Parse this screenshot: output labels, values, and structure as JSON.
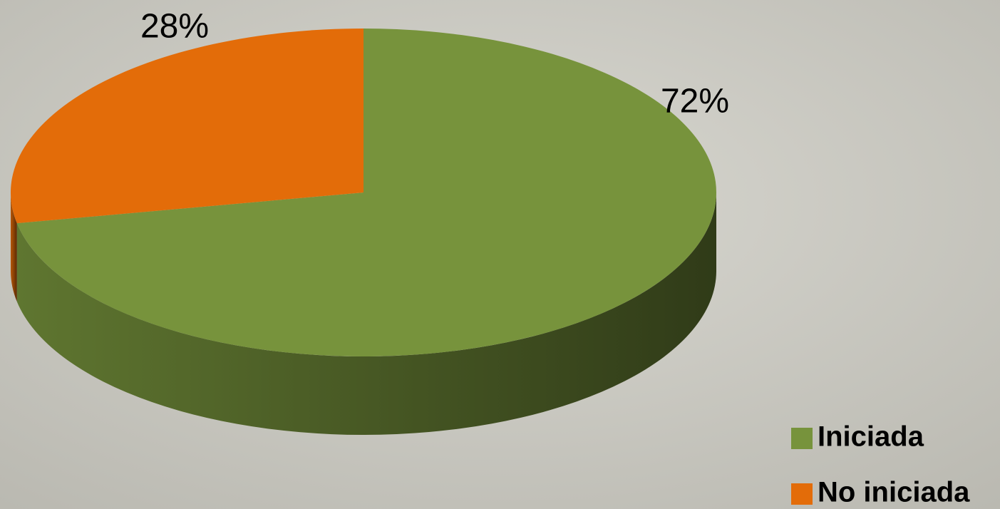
{
  "chart_data": {
    "type": "pie",
    "categories": [
      "Iniciada",
      "No iniciada"
    ],
    "values": [
      72,
      28
    ],
    "value_labels": [
      "72%",
      "28%"
    ],
    "colors": [
      "#77933c",
      "#e36c09"
    ],
    "legend": "bottom-right"
  }
}
